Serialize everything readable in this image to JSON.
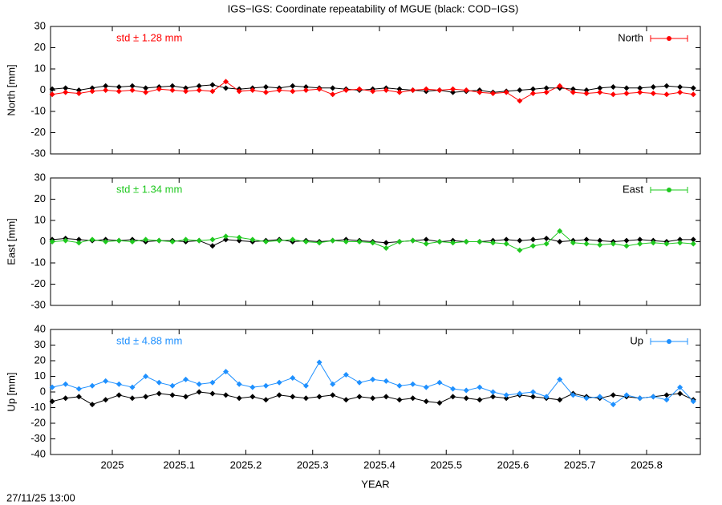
{
  "title": "IGS−IGS: Coordinate repeatability of MGUE (black: COD−IGS)",
  "timestamp": "27/11/25 13:00",
  "chart_data": [
    {
      "type": "line",
      "ylabel": "North [mm]",
      "annotation": "std ± 1.28 mm",
      "x": [
        2024.91,
        2024.93,
        2024.95,
        2024.97,
        2024.99,
        2025.01,
        2025.03,
        2025.05,
        2025.07,
        2025.09,
        2025.11,
        2025.13,
        2025.15,
        2025.17,
        2025.19,
        2025.21,
        2025.23,
        2025.25,
        2025.27,
        2025.29,
        2025.31,
        2025.33,
        2025.35,
        2025.37,
        2025.39,
        2025.41,
        2025.43,
        2025.45,
        2025.47,
        2025.49,
        2025.51,
        2025.53,
        2025.55,
        2025.57,
        2025.59,
        2025.61,
        2025.63,
        2025.65,
        2025.67,
        2025.69,
        2025.71,
        2025.73,
        2025.75,
        2025.77,
        2025.79,
        2025.81,
        2025.83,
        2025.85,
        2025.87
      ],
      "series": [
        {
          "color": "#000000",
          "values": [
            0.5,
            1,
            0,
            1,
            2,
            1.5,
            2,
            1,
            1.5,
            2,
            1,
            2,
            2.5,
            1,
            0.5,
            1,
            1.5,
            1,
            2,
            1.5,
            1,
            1,
            0.5,
            0,
            0.5,
            1,
            0.5,
            0,
            -0.5,
            0,
            -1,
            -0.5,
            0,
            -1,
            -0.5,
            0,
            0.5,
            1,
            1,
            0.5,
            0,
            1,
            1.5,
            1,
            1,
            1.5,
            2,
            1.5,
            1
          ]
        },
        {
          "name": "North",
          "color": "#ff0000",
          "values": [
            -2,
            -1,
            -1.5,
            -0.5,
            0,
            -0.5,
            0,
            -1,
            0.5,
            0,
            -0.5,
            0,
            -0.5,
            4,
            -0.5,
            0,
            -1,
            0,
            -0.5,
            0,
            0.5,
            -2,
            0,
            0.5,
            -0.5,
            0,
            -1,
            0,
            0.5,
            0,
            0.5,
            0,
            -1,
            -1.5,
            -1,
            -5,
            -1.5,
            -1,
            2,
            -1,
            -1.5,
            -1,
            -2,
            -1.5,
            -1,
            -1.5,
            -2,
            -1,
            -2
          ]
        }
      ],
      "xlim": [
        2024.9075,
        2025.8805
      ],
      "xticks": [
        2025,
        2025.1,
        2025.2,
        2025.3,
        2025.4,
        2025.5,
        2025.6,
        2025.7,
        2025.8
      ],
      "ylim": [
        -30,
        30
      ],
      "yticks": [
        -30,
        -20,
        -10,
        0,
        10,
        20,
        30
      ],
      "legend": "top-right"
    },
    {
      "type": "line",
      "ylabel": "East [mm]",
      "annotation": "std ± 1.34 mm",
      "x": [
        2024.91,
        2024.93,
        2024.95,
        2024.97,
        2024.99,
        2025.01,
        2025.03,
        2025.05,
        2025.07,
        2025.09,
        2025.11,
        2025.13,
        2025.15,
        2025.17,
        2025.19,
        2025.21,
        2025.23,
        2025.25,
        2025.27,
        2025.29,
        2025.31,
        2025.33,
        2025.35,
        2025.37,
        2025.39,
        2025.41,
        2025.43,
        2025.45,
        2025.47,
        2025.49,
        2025.51,
        2025.53,
        2025.55,
        2025.57,
        2025.59,
        2025.61,
        2025.63,
        2025.65,
        2025.67,
        2025.69,
        2025.71,
        2025.73,
        2025.75,
        2025.77,
        2025.79,
        2025.81,
        2025.83,
        2025.85,
        2025.87
      ],
      "series": [
        {
          "color": "#000000",
          "values": [
            1,
            1.5,
            1,
            0.5,
            1,
            0.5,
            1,
            0,
            0.5,
            0.5,
            0,
            0.5,
            -2,
            1,
            0.5,
            0,
            0.5,
            1,
            0,
            0.5,
            0,
            0.5,
            1,
            0.5,
            0,
            -0.5,
            0,
            0.5,
            1,
            0,
            0.5,
            0,
            0,
            0.5,
            1,
            0.5,
            1,
            1.5,
            0,
            0.5,
            1,
            0.5,
            0,
            0.5,
            1,
            0.5,
            0,
            1,
            1
          ]
        },
        {
          "name": "East",
          "color": "#1ec81e",
          "values": [
            0,
            0.5,
            -0.5,
            1,
            0,
            0.5,
            0,
            1,
            0.5,
            0,
            1,
            0.5,
            1,
            2.5,
            2,
            1,
            0,
            0.5,
            1,
            0,
            -0.5,
            0.5,
            0,
            0,
            -0.5,
            -3,
            0,
            0.5,
            -1,
            0,
            -0.5,
            0,
            0,
            -0.5,
            -1,
            -4,
            -2,
            -1,
            5,
            -0.5,
            -1,
            -1.5,
            -1,
            -2,
            -1,
            -0.5,
            -1,
            -0.5,
            -1
          ]
        }
      ],
      "xlim": [
        2024.9075,
        2025.8805
      ],
      "xticks": [
        2025,
        2025.1,
        2025.2,
        2025.3,
        2025.4,
        2025.5,
        2025.6,
        2025.7,
        2025.8
      ],
      "ylim": [
        -30,
        30
      ],
      "yticks": [
        -30,
        -20,
        -10,
        0,
        10,
        20,
        30
      ],
      "legend": "top-right"
    },
    {
      "type": "line",
      "ylabel": "Up [mm]",
      "xlabel": "YEAR",
      "annotation": "std ± 4.88 mm",
      "x": [
        2024.91,
        2024.93,
        2024.95,
        2024.97,
        2024.99,
        2025.01,
        2025.03,
        2025.05,
        2025.07,
        2025.09,
        2025.11,
        2025.13,
        2025.15,
        2025.17,
        2025.19,
        2025.21,
        2025.23,
        2025.25,
        2025.27,
        2025.29,
        2025.31,
        2025.33,
        2025.35,
        2025.37,
        2025.39,
        2025.41,
        2025.43,
        2025.45,
        2025.47,
        2025.49,
        2025.51,
        2025.53,
        2025.55,
        2025.57,
        2025.59,
        2025.61,
        2025.63,
        2025.65,
        2025.67,
        2025.69,
        2025.71,
        2025.73,
        2025.75,
        2025.77,
        2025.79,
        2025.81,
        2025.83,
        2025.85,
        2025.87
      ],
      "series": [
        {
          "color": "#000000",
          "values": [
            -6,
            -4,
            -3,
            -8,
            -5,
            -2,
            -4,
            -3,
            -1,
            -2,
            -3,
            0,
            -1,
            -2,
            -4,
            -3,
            -5,
            -2,
            -3,
            -4,
            -3,
            -2,
            -5,
            -3,
            -4,
            -3,
            -5,
            -4,
            -6,
            -7,
            -3,
            -4,
            -5,
            -3,
            -4,
            -2,
            -3,
            -4,
            -5,
            -1,
            -3,
            -4,
            -2,
            -3,
            -4,
            -3,
            -2,
            -1,
            -5
          ]
        },
        {
          "name": "Up",
          "color": "#1e90ff",
          "values": [
            3,
            5,
            2,
            4,
            7,
            5,
            3,
            10,
            6,
            4,
            8,
            5,
            6,
            13,
            5,
            3,
            4,
            6,
            9,
            4,
            19,
            5,
            11,
            6,
            8,
            7,
            4,
            5,
            3,
            6,
            2,
            1,
            3,
            0,
            -2,
            -1,
            0,
            -3,
            8,
            -2,
            -4,
            -3,
            -8,
            -2,
            -4,
            -3,
            -5,
            3,
            -6
          ]
        }
      ],
      "xlim": [
        2024.9075,
        2025.8805
      ],
      "xticks": [
        2025,
        2025.1,
        2025.2,
        2025.3,
        2025.4,
        2025.5,
        2025.6,
        2025.7,
        2025.8
      ],
      "ylim": [
        -40,
        40
      ],
      "yticks": [
        -40,
        -30,
        -20,
        -10,
        0,
        10,
        20,
        30,
        40
      ],
      "legend": "top-right"
    }
  ]
}
